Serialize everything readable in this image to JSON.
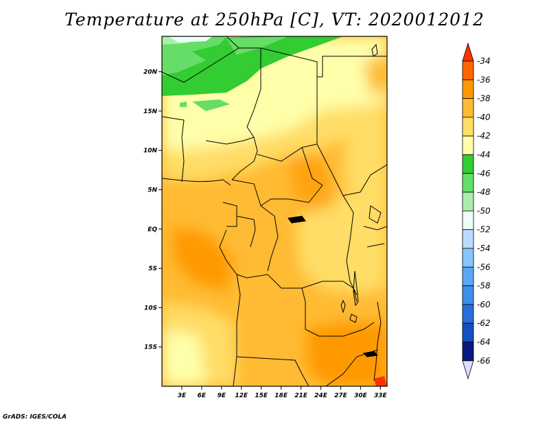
{
  "title": "Temperature at 250hPa [C], VT: 2020012012",
  "credit": "GrADS: IGES/COLA",
  "map": {
    "lon_range": [
      0,
      34
    ],
    "lat_range": [
      -20,
      24.5
    ],
    "lon_labels": [
      "3E",
      "6E",
      "9E",
      "12E",
      "15E",
      "18E",
      "21E",
      "24E",
      "27E",
      "30E",
      "33E"
    ],
    "lon_values": [
      3,
      6,
      9,
      12,
      15,
      18,
      21,
      24,
      27,
      30,
      33
    ],
    "lat_labels": [
      "20N",
      "15N",
      "10N",
      "5N",
      "EQ",
      "5S",
      "10S",
      "15S"
    ],
    "lat_values": [
      20,
      15,
      10,
      5,
      0,
      -5,
      -10,
      -15
    ]
  },
  "colorbar": {
    "labels": [
      "-34",
      "-36",
      "-38",
      "-40",
      "-42",
      "-44",
      "-46",
      "-48",
      "-50",
      "-52",
      "-54",
      "-56",
      "-58",
      "-60",
      "-62",
      "-64",
      "-66"
    ],
    "colors": [
      "#ff3300",
      "#ff6600",
      "#ff9900",
      "#ffbb33",
      "#ffdd66",
      "#ffffaa",
      "#33cc33",
      "#66dd66",
      "#aaeeaa",
      "#eefff9",
      "#bbdcff",
      "#88c4ff",
      "#5aa8f2",
      "#3f8ee8",
      "#2a6dd8",
      "#1450c0",
      "#0a1a80",
      "#ddddff"
    ]
  }
}
